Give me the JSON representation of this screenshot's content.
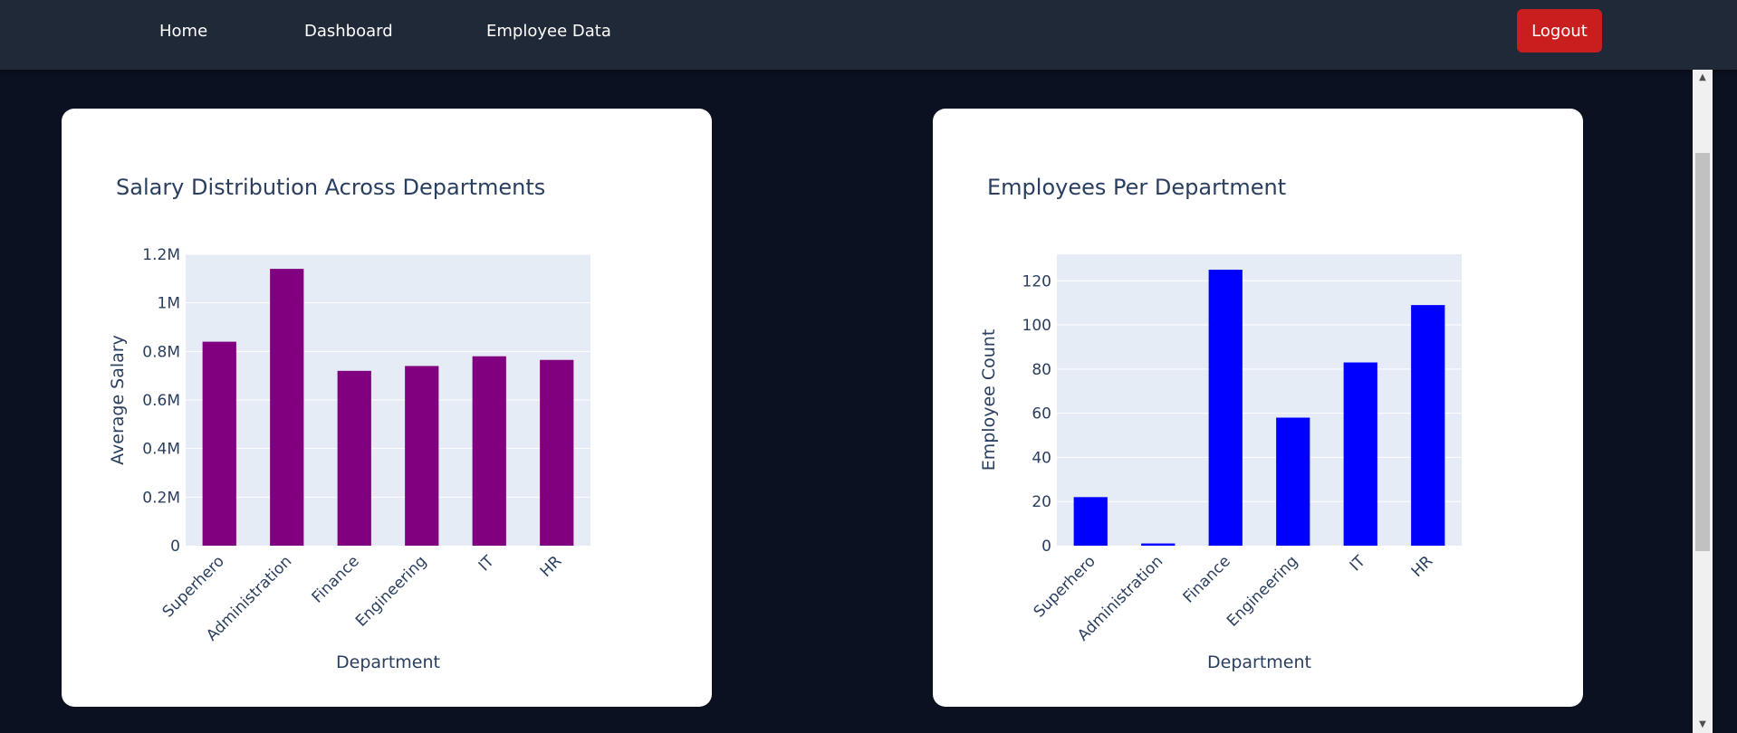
{
  "nav": {
    "home": "Home",
    "dashboard": "Dashboard",
    "employee_data": "Employee Data",
    "logout": "Logout"
  },
  "colors": {
    "salary_bar": "#800080",
    "employee_bar": "#0000ff",
    "plot_bg": "#e5ecf6",
    "axis_text": "#2a3f5f"
  },
  "chart_data": [
    {
      "type": "bar",
      "title": "Salary Distribution Across Departments",
      "xlabel": "Department",
      "ylabel": "Average Salary",
      "categories": [
        "Superhero",
        "Administration",
        "Finance",
        "Engineering",
        "IT",
        "HR"
      ],
      "values": [
        840000,
        1140000,
        720000,
        740000,
        780000,
        765000
      ],
      "ylim": [
        0,
        1200000
      ],
      "yticks": [
        0,
        200000,
        400000,
        600000,
        800000,
        1000000,
        1200000
      ],
      "ytick_labels": [
        "0",
        "0.2M",
        "0.4M",
        "0.6M",
        "0.8M",
        "1M",
        "1.2M"
      ],
      "grid": true
    },
    {
      "type": "bar",
      "title": "Employees Per Department",
      "xlabel": "Department",
      "ylabel": "Employee Count",
      "categories": [
        "Superhero",
        "Administration",
        "Finance",
        "Engineering",
        "IT",
        "HR"
      ],
      "values": [
        22,
        1,
        125,
        58,
        83,
        109
      ],
      "ylim": [
        0,
        132
      ],
      "yticks": [
        0,
        20,
        40,
        60,
        80,
        100,
        120
      ],
      "ytick_labels": [
        "0",
        "20",
        "40",
        "60",
        "80",
        "100",
        "120"
      ],
      "grid": true
    }
  ]
}
